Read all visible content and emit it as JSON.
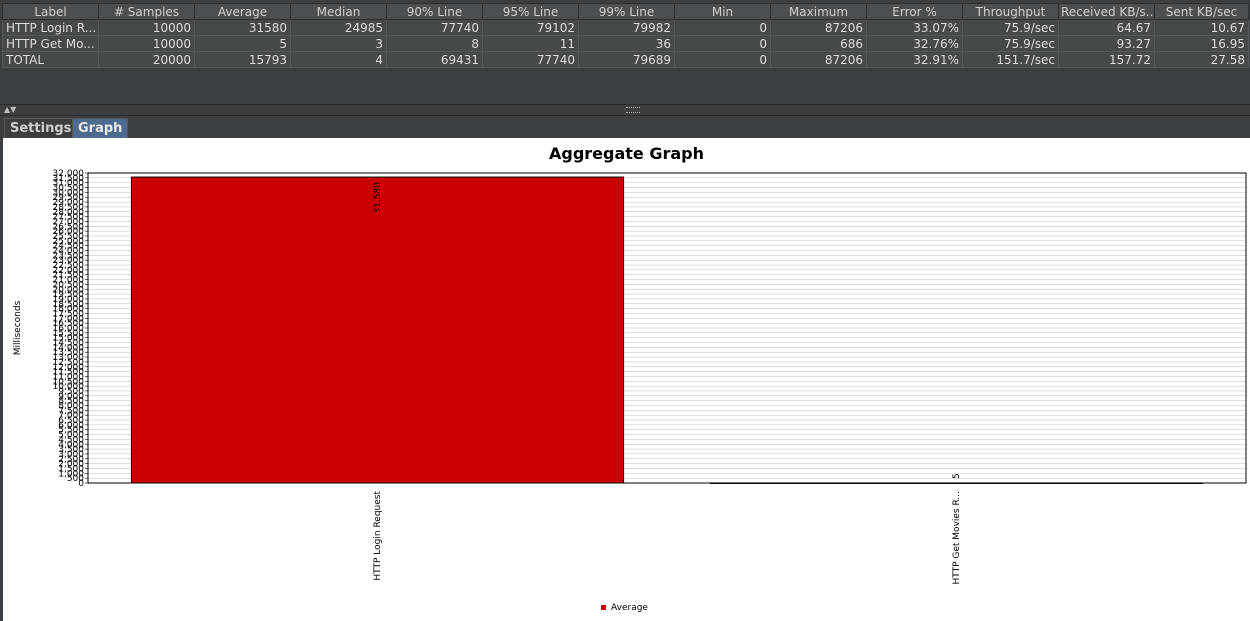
{
  "table": {
    "headers": [
      "Label",
      "# Samples",
      "Average",
      "Median",
      "90% Line",
      "95% Line",
      "99% Line",
      "Min",
      "Maximum",
      "Error %",
      "Throughput",
      "Received KB/s...",
      "Sent KB/sec"
    ],
    "rows": [
      [
        "HTTP Login R...",
        "10000",
        "31580",
        "24985",
        "77740",
        "79102",
        "79982",
        "0",
        "87206",
        "33.07%",
        "75.9/sec",
        "64.67",
        "10.67"
      ],
      [
        "HTTP Get Mo...",
        "10000",
        "5",
        "3",
        "8",
        "11",
        "36",
        "0",
        "686",
        "32.76%",
        "75.9/sec",
        "93.27",
        "16.95"
      ],
      [
        "TOTAL",
        "20000",
        "15793",
        "4",
        "69431",
        "77740",
        "79689",
        "0",
        "87206",
        "32.91%",
        "151.7/sec",
        "157.72",
        "27.58"
      ]
    ]
  },
  "tabs": {
    "settings": "Settings",
    "graph": "Graph"
  },
  "chart_data": {
    "type": "bar",
    "title": "Aggregate Graph",
    "ylabel": "Milliseconds",
    "xlabel": "",
    "categories": [
      "HTTP Login Request",
      "HTTP Get Movies R..."
    ],
    "series": [
      {
        "name": "Average",
        "values": [
          31580,
          5
        ],
        "labels": [
          "31,580",
          "5"
        ],
        "color": "#cc0000"
      }
    ],
    "ylim": [
      0,
      32000
    ],
    "ytick_step": 500,
    "grid": true,
    "legend": "bottom"
  }
}
